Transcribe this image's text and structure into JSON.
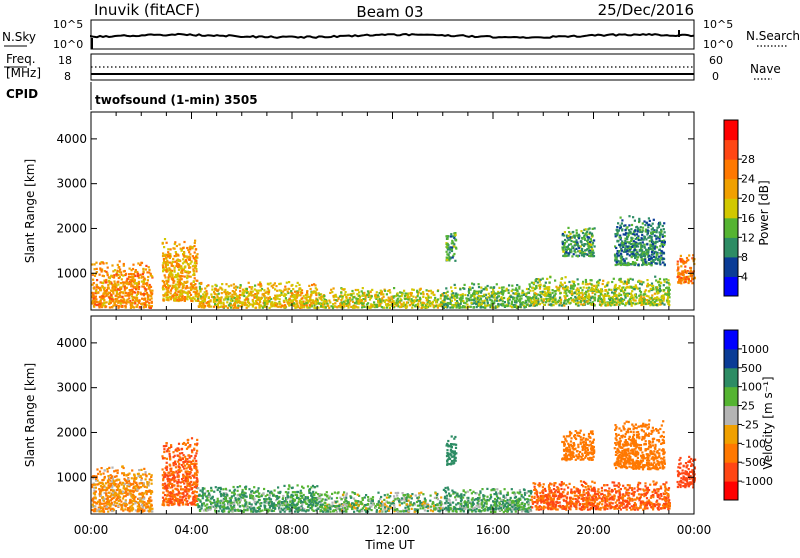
{
  "header": {
    "station": "Inuvik  (fitACF)",
    "beam": "Beam 03",
    "date": "25/Dec/2016"
  },
  "sky_panel": {
    "left_label": "N.Sky",
    "left_ticks": [
      "10^5",
      "10^0"
    ],
    "right_label": "N.Search",
    "right_ticks": [
      "10^5",
      "10^0"
    ]
  },
  "freq_panel": {
    "left_label_line1": "Freq.",
    "left_label_line2": "[MHz]",
    "left_ticks": [
      "18",
      "8"
    ],
    "right_label": "Nave",
    "right_ticks": [
      "60",
      "0"
    ]
  },
  "cpid": {
    "label": "CPID",
    "text": "twofsound (1-min) 3505"
  },
  "colors": {
    "power_scale": [
      "#0000ff",
      "#0a3c96",
      "#2d8c64",
      "#55b432",
      "#d2c800",
      "#f0a000",
      "#ff7800",
      "#ff4614",
      "#ff0000"
    ],
    "velocity_scale": [
      "#ff0000",
      "#ff4614",
      "#ff7800",
      "#f0a000",
      "#b4b4b4",
      "#55b432",
      "#2d8c64",
      "#0a3c96",
      "#0000ff"
    ]
  },
  "chart_data": [
    {
      "type": "heatmap",
      "name": "power",
      "ylabel": "Slant Range [km]",
      "y_ticks": [
        1000,
        2000,
        3000,
        4000
      ],
      "ylim": [
        180,
        4600
      ],
      "xlim": [
        0,
        24
      ],
      "colorbar": {
        "label": "Power [dB]",
        "ticks": [
          "4",
          "8",
          "12",
          "16",
          "20",
          "24",
          "28"
        ],
        "range": [
          0,
          32
        ]
      },
      "echo_regions": [
        {
          "t0": 0.0,
          "t1": 2.4,
          "r0": 250,
          "r1": 1300,
          "value": 24
        },
        {
          "t0": 2.8,
          "t1": 4.2,
          "r0": 400,
          "r1": 1800,
          "value": 22
        },
        {
          "t0": 4.2,
          "t1": 9.0,
          "r0": 250,
          "r1": 850,
          "value": 20
        },
        {
          "t0": 9.0,
          "t1": 14.0,
          "r0": 250,
          "r1": 700,
          "value": 18
        },
        {
          "t0": 14.0,
          "t1": 17.5,
          "r0": 250,
          "r1": 800,
          "value": 14
        },
        {
          "t0": 17.5,
          "t1": 23.0,
          "r0": 300,
          "r1": 950,
          "value": 16
        },
        {
          "t0": 14.1,
          "t1": 14.5,
          "r0": 1300,
          "r1": 2000,
          "value": 12
        },
        {
          "t0": 18.7,
          "t1": 20.0,
          "r0": 1400,
          "r1": 2100,
          "value": 12
        },
        {
          "t0": 20.8,
          "t1": 22.8,
          "r0": 1200,
          "r1": 2300,
          "value": 10
        },
        {
          "t0": 23.3,
          "t1": 24.0,
          "r0": 800,
          "r1": 1500,
          "value": 26
        }
      ]
    },
    {
      "type": "heatmap",
      "name": "velocity",
      "ylabel": "Slant Range [km]",
      "xlabel": "Time UT",
      "x_ticks": [
        "00:00",
        "04:00",
        "08:00",
        "12:00",
        "16:00",
        "20:00",
        "00:00"
      ],
      "y_ticks": [
        1000,
        2000,
        3000,
        4000
      ],
      "ylim": [
        180,
        4600
      ],
      "xlim": [
        0,
        24
      ],
      "colorbar": {
        "label": "Velocity  [m s⁻¹]",
        "ticks": [
          "-1000",
          "-500",
          "-100",
          "-25",
          "25",
          "100",
          "500",
          "1000"
        ]
      },
      "echo_regions": [
        {
          "t0": 0.0,
          "t1": 2.4,
          "r0": 250,
          "r1": 1300,
          "value": -100
        },
        {
          "t0": 2.8,
          "t1": 4.2,
          "r0": 400,
          "r1": 1900,
          "value": -500
        },
        {
          "t0": 4.2,
          "t1": 9.0,
          "r0": 250,
          "r1": 850,
          "value": 100
        },
        {
          "t0": 9.0,
          "t1": 14.0,
          "r0": 250,
          "r1": 700,
          "value": 50
        },
        {
          "t0": 14.0,
          "t1": 17.5,
          "r0": 250,
          "r1": 800,
          "value": 100
        },
        {
          "t0": 17.5,
          "t1": 23.0,
          "r0": 300,
          "r1": 950,
          "value": -500
        },
        {
          "t0": 14.1,
          "t1": 14.5,
          "r0": 1300,
          "r1": 2000,
          "value": 300
        },
        {
          "t0": 18.7,
          "t1": 20.0,
          "r0": 1400,
          "r1": 2100,
          "value": -200
        },
        {
          "t0": 20.8,
          "t1": 22.8,
          "r0": 1200,
          "r1": 2300,
          "value": -300
        },
        {
          "t0": 23.3,
          "t1": 24.0,
          "r0": 800,
          "r1": 1500,
          "value": -700
        }
      ]
    }
  ]
}
